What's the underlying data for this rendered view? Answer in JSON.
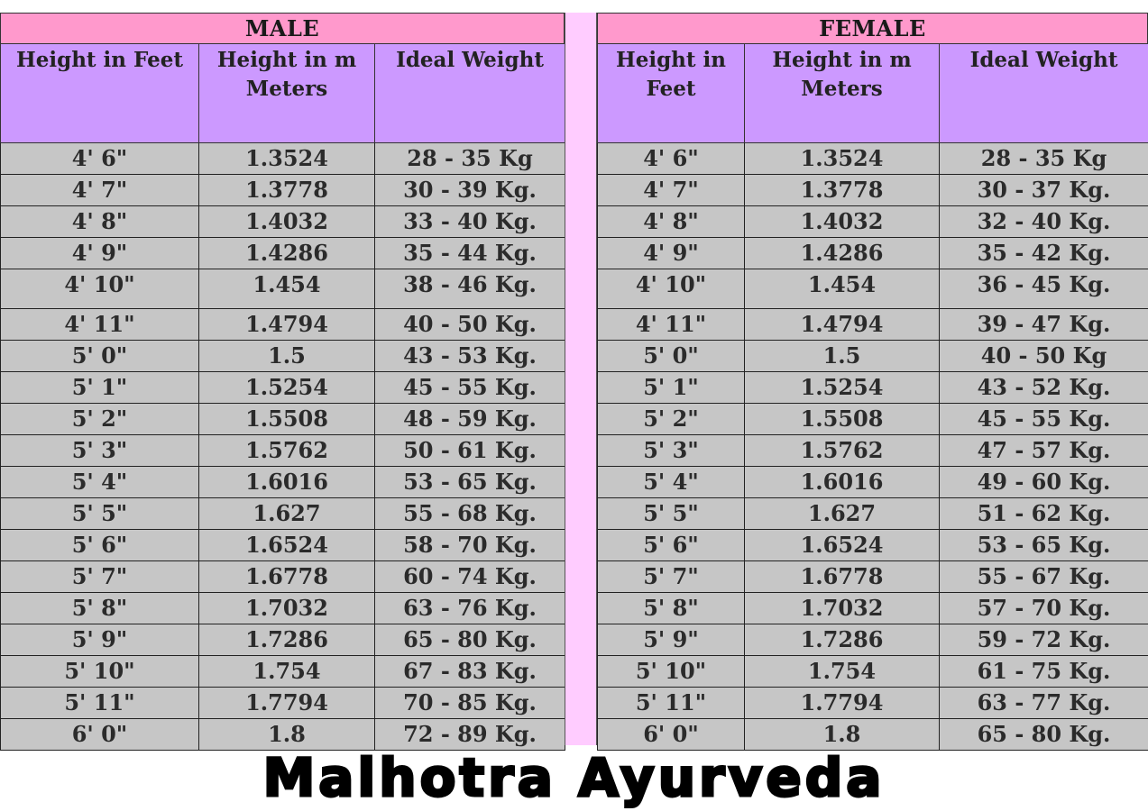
{
  "male": {
    "title": "MALE",
    "headers": [
      "Height in Feet",
      "Height in m Meters",
      "Ideal Weight"
    ],
    "rows": [
      [
        "4' 6\"",
        "1.3524",
        "28 - 35 Kg"
      ],
      [
        "4' 7\"",
        "1.3778",
        "30 - 39 Kg."
      ],
      [
        "4' 8\"",
        "1.4032",
        "33 - 40 Kg."
      ],
      [
        "4' 9\"",
        "1.4286",
        "35 - 44 Kg."
      ],
      [
        "4' 10\"",
        "1.454",
        "38 - 46 Kg."
      ],
      [
        "4' 11\"",
        "1.4794",
        "40 - 50 Kg."
      ],
      [
        "5' 0\"",
        "1.5",
        "43 - 53 Kg."
      ],
      [
        "5' 1\"",
        "1.5254",
        "45 - 55 Kg."
      ],
      [
        "5' 2\"",
        "1.5508",
        "48 - 59 Kg."
      ],
      [
        "5' 3\"",
        "1.5762",
        "50 - 61 Kg."
      ],
      [
        "5' 4\"",
        "1.6016",
        "53 - 65 Kg."
      ],
      [
        "5' 5\"",
        "1.627",
        "55 - 68 Kg."
      ],
      [
        "5' 6\"",
        "1.6524",
        "58 - 70 Kg."
      ],
      [
        "5' 7\"",
        "1.6778",
        "60 - 74 Kg."
      ],
      [
        "5' 8\"",
        "1.7032",
        "63 - 76 Kg."
      ],
      [
        "5' 9\"",
        "1.7286",
        "65 - 80 Kg."
      ],
      [
        "5' 10\"",
        "1.754",
        "67 - 83 Kg."
      ],
      [
        "5' 11\"",
        "1.7794",
        "70 - 85 Kg."
      ],
      [
        "6' 0\"",
        "1.8",
        "72 - 89 Kg."
      ]
    ]
  },
  "female": {
    "title": "FEMALE",
    "headers": [
      "Height in Feet",
      "Height in m Meters",
      "Ideal Weight"
    ],
    "rows": [
      [
        "4' 6\"",
        "1.3524",
        "28 - 35 Kg"
      ],
      [
        "4' 7\"",
        "1.3778",
        "30 - 37 Kg."
      ],
      [
        "4' 8\"",
        "1.4032",
        "32 - 40 Kg."
      ],
      [
        "4' 9\"",
        "1.4286",
        "35 - 42 Kg."
      ],
      [
        "4' 10\"",
        "1.454",
        "36 - 45 Kg."
      ],
      [
        "4' 11\"",
        "1.4794",
        "39 - 47 Kg."
      ],
      [
        "5' 0\"",
        "1.5",
        "40 - 50 Kg"
      ],
      [
        "5' 1\"",
        "1.5254",
        "43 - 52 Kg."
      ],
      [
        "5' 2\"",
        "1.5508",
        "45 - 55 Kg."
      ],
      [
        "5' 3\"",
        "1.5762",
        "47 - 57 Kg."
      ],
      [
        "5' 4\"",
        "1.6016",
        "49 - 60 Kg."
      ],
      [
        "5' 5\"",
        "1.627",
        "51 - 62 Kg."
      ],
      [
        "5' 6\"",
        "1.6524",
        "53 - 65 Kg."
      ],
      [
        "5' 7\"",
        "1.6778",
        "55 - 67 Kg."
      ],
      [
        "5' 8\"",
        "1.7032",
        "57 - 70 Kg."
      ],
      [
        "5' 9\"",
        "1.7286",
        "59 - 72 Kg."
      ],
      [
        "5' 10\"",
        "1.754",
        "61 - 75 Kg."
      ],
      [
        "5' 11\"",
        "1.7794",
        "63 - 77 Kg."
      ],
      [
        "6' 0\"",
        "1.8",
        "65 - 80 Kg."
      ]
    ]
  },
  "brand": "Malhotra Ayurveda",
  "colors": {
    "title_bar": "#ff99cc",
    "header": "#cc99ff",
    "cell": "#c6c6c6",
    "divider": "#ffccff"
  }
}
